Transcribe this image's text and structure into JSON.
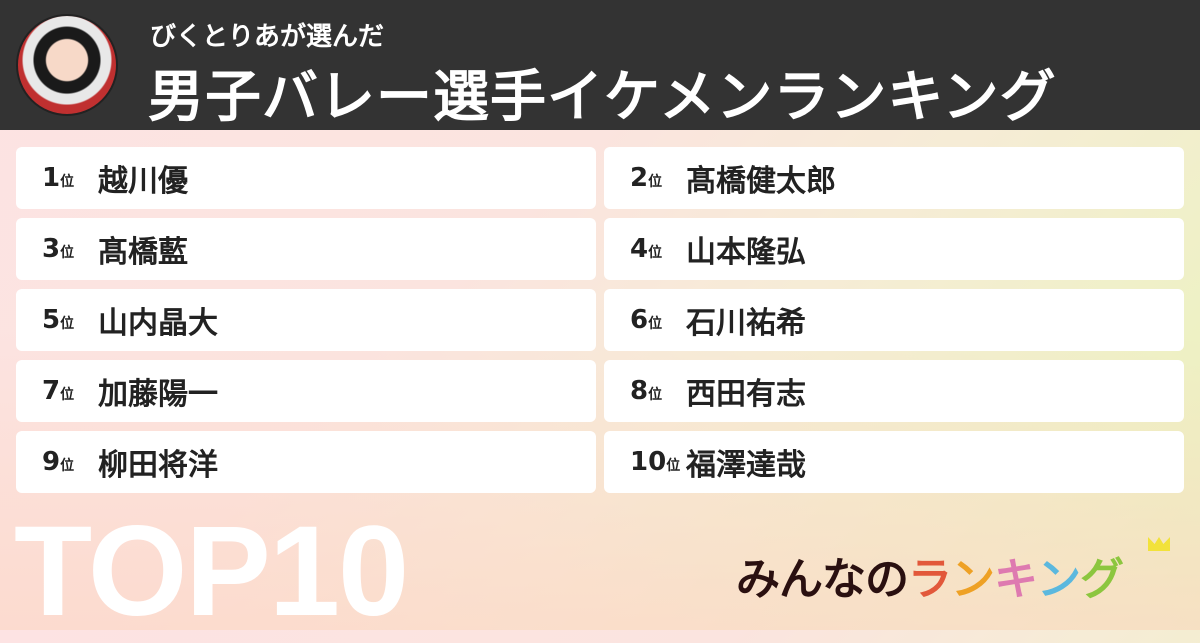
{
  "header": {
    "subtitle": "びくとりあが選んだ",
    "title": "男子バレー選手イケメンランキング"
  },
  "rank_suffix": "位",
  "rankings": [
    {
      "rank": "1",
      "name": "越川優"
    },
    {
      "rank": "2",
      "name": "髙橋健太郎"
    },
    {
      "rank": "3",
      "name": "髙橋藍"
    },
    {
      "rank": "4",
      "name": "山本隆弘"
    },
    {
      "rank": "5",
      "name": "山内晶大"
    },
    {
      "rank": "6",
      "name": "石川祐希"
    },
    {
      "rank": "7",
      "name": "加藤陽一"
    },
    {
      "rank": "8",
      "name": "西田有志"
    },
    {
      "rank": "9",
      "name": "柳田将洋"
    },
    {
      "rank": "10",
      "name": "福澤達哉"
    }
  ],
  "badge": "TOP10",
  "logo": {
    "part1": "みんなの",
    "letters": [
      "ラ",
      "ン",
      "キ",
      "ン",
      "グ"
    ],
    "colors": [
      "#e2583a",
      "#eea125",
      "#de7ab0",
      "#5bb8de",
      "#8cc63f"
    ]
  }
}
